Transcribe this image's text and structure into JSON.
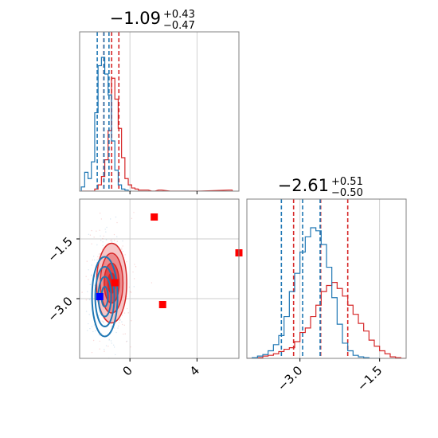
{
  "colors": {
    "red": "#d62728",
    "blue": "#1f77b4",
    "red_fill_light": "#f6c6c7",
    "red_fill_mid": "#ec8c8e",
    "red_fill_dark": "#e04a4c",
    "marker_red": "#ff0000",
    "marker_blue": "#0000ff",
    "grid": "#cccccc",
    "frame": "#808080"
  },
  "chart_data": [
    {
      "type": "histogram",
      "panel": "top-left",
      "title": {
        "value": "−1.09",
        "upper": "+0.43",
        "lower": "−0.47"
      },
      "xlim": [
        -3.0,
        6.5
      ],
      "grid": true,
      "series": [
        {
          "name": "",
          "color": "red",
          "x": [
            -2.8,
            -2.6,
            -2.4,
            -2.2,
            -2.0,
            -1.8,
            -1.6,
            -1.4,
            -1.2,
            -1.0,
            -0.8,
            -0.6,
            -0.4,
            -0.2,
            0.0,
            0.2,
            0.4,
            0.6,
            0.8,
            1.0,
            1.4,
            1.8,
            2.5,
            4.0,
            6.0
          ],
          "counts": [
            0,
            0,
            0,
            0,
            2,
            6,
            14,
            30,
            58,
            108,
            88,
            60,
            32,
            12,
            6,
            3,
            2,
            1,
            1,
            1,
            0,
            1,
            0,
            0,
            1
          ],
          "quantiles": [
            -1.56,
            -1.09,
            -0.66
          ]
        },
        {
          "name": "",
          "color": "blue",
          "x": [
            -2.8,
            -2.6,
            -2.4,
            -2.2,
            -2.0,
            -1.8,
            -1.6,
            -1.4,
            -1.2,
            -1.0,
            -0.8,
            -0.6,
            -0.4,
            -0.2,
            0.0
          ],
          "counts": [
            4,
            18,
            12,
            28,
            75,
            120,
            128,
            112,
            92,
            48,
            20,
            6,
            2,
            1,
            0
          ],
          "quantiles": [
            -1.95,
            -1.55,
            -1.25
          ]
        }
      ]
    },
    {
      "type": "histogram",
      "panel": "bottom-right",
      "title": {
        "value": "−2.61",
        "upper": "+0.51",
        "lower": "−0.50"
      },
      "xlim": [
        -4.0,
        -1.0
      ],
      "xticks": [
        "−3.0",
        "−1.5"
      ],
      "xtick_values": [
        -3.0,
        -1.5
      ],
      "grid": true,
      "series": [
        {
          "name": "",
          "color": "red",
          "x": [
            -3.95,
            -3.85,
            -3.75,
            -3.65,
            -3.55,
            -3.45,
            -3.35,
            -3.25,
            -3.15,
            -3.05,
            -2.95,
            -2.85,
            -2.75,
            -2.65,
            -2.55,
            -2.45,
            -2.35,
            -2.25,
            -2.15,
            -2.05,
            -1.95,
            -1.85,
            -1.75,
            -1.65,
            -1.55,
            -1.45,
            -1.35,
            -1.25,
            -1.15,
            -1.05
          ],
          "counts": [
            0,
            0,
            1,
            3,
            4,
            6,
            9,
            12,
            14,
            22,
            34,
            40,
            55,
            70,
            88,
            96,
            100,
            92,
            82,
            70,
            58,
            46,
            36,
            24,
            16,
            10,
            6,
            2,
            1,
            0
          ],
          "quantiles": [
            -3.12,
            -2.61,
            -2.1
          ]
        },
        {
          "name": "",
          "color": "blue",
          "x": [
            -3.95,
            -3.85,
            -3.75,
            -3.65,
            -3.55,
            -3.45,
            -3.35,
            -3.25,
            -3.15,
            -3.05,
            -2.95,
            -2.85,
            -2.75,
            -2.65,
            -2.55,
            -2.45,
            -2.35,
            -2.25,
            -2.15,
            -2.05,
            -1.95,
            -1.85,
            -1.75,
            -1.65,
            -1.55
          ],
          "counts": [
            0,
            1,
            3,
            5,
            10,
            18,
            30,
            55,
            88,
            112,
            140,
            160,
            172,
            168,
            150,
            120,
            80,
            45,
            20,
            10,
            4,
            2,
            1,
            0,
            0
          ],
          "quantiles": [
            -3.35,
            -2.95,
            -2.62
          ]
        }
      ]
    },
    {
      "type": "contour",
      "panel": "bottom-left",
      "xlim": [
        -3.0,
        6.5
      ],
      "ylim": [
        -4.5,
        -0.5
      ],
      "xticks": [
        "0",
        "4"
      ],
      "xtick_values": [
        0,
        4
      ],
      "yticks": [
        "−3.0",
        "−1.5"
      ],
      "ytick_values": [
        -3.0,
        -1.5
      ],
      "grid": true,
      "series": [
        {
          "name": "",
          "color": "red",
          "filled": true,
          "center": [
            -1.09,
            -2.61
          ],
          "sigma": [
            0.45,
            0.5
          ],
          "levels": [
            0.5,
            1.0,
            1.5,
            2.0
          ]
        },
        {
          "name": "",
          "color": "blue",
          "filled": false,
          "center": [
            -1.5,
            -2.95
          ],
          "sigma": [
            0.38,
            0.5
          ],
          "levels": [
            0.5,
            1.0,
            1.5,
            2.0
          ]
        }
      ],
      "markers": [
        {
          "color": "marker_red",
          "x": 1.45,
          "y": -0.95
        },
        {
          "color": "marker_red",
          "x": -0.9,
          "y": -2.6
        },
        {
          "color": "marker_red",
          "x": 1.95,
          "y": -3.15
        },
        {
          "color": "marker_red",
          "x": 6.5,
          "y": -1.85
        },
        {
          "color": "marker_blue",
          "x": -1.8,
          "y": -2.95
        }
      ]
    }
  ]
}
